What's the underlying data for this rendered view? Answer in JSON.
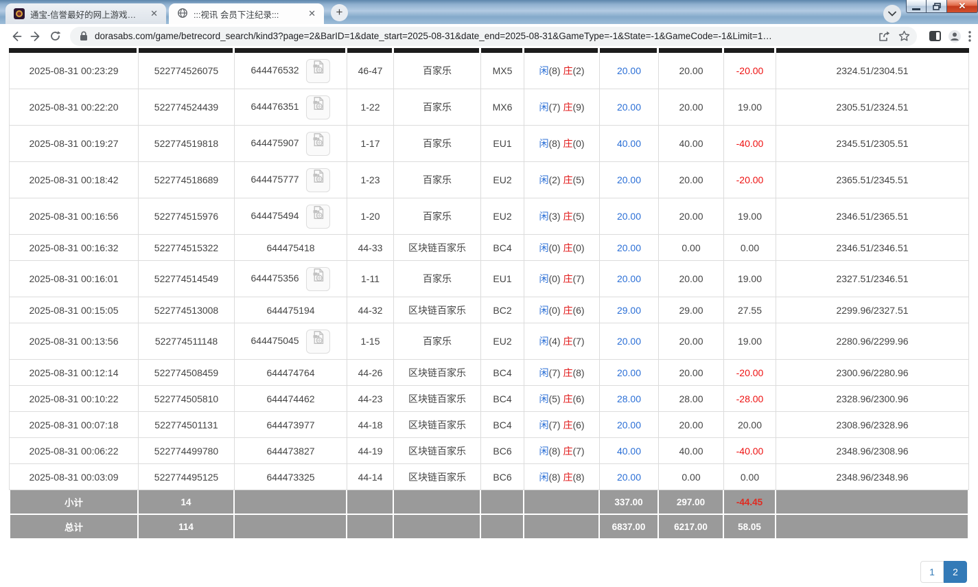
{
  "browser": {
    "tabs": [
      {
        "title": "通宝-信誉最好的网上游戏平台",
        "close": "✕"
      },
      {
        "title": ":::视讯 会员下注纪录:::",
        "close": "✕"
      }
    ],
    "new_tab_label": "+",
    "url": "dorasabs.com/game/betrecord_search/kind3?page=2&BarID=1&date_start=2025-08-31&date_end=2025-08-31&GameType=-1&State=-1&GameCode=-1&Limit=1…",
    "close_glyph": "✕"
  },
  "result_labels": {
    "player": "闲",
    "banker": "庄"
  },
  "colors": {
    "amount_blue": "#2b6fd6",
    "banker_red": "#e01414",
    "loss_red": "#ee1111",
    "footer_gray": "#9a9a9a",
    "pagination_blue": "#337ab7"
  },
  "table": {
    "rows": [
      {
        "time": "2025-08-31 00:23:29",
        "bet_id": "522774526075",
        "game_id": "644476532",
        "video": true,
        "round": "46-47",
        "game": "百家乐",
        "table": "MX5",
        "player_n": "(8)",
        "banker_n": "(2)",
        "bet": "20.00",
        "valid": "20.00",
        "winloss": "-20.00",
        "balance": "2324.51/2304.51"
      },
      {
        "time": "2025-08-31 00:22:20",
        "bet_id": "522774524439",
        "game_id": "644476351",
        "video": true,
        "round": "1-22",
        "game": "百家乐",
        "table": "MX6",
        "player_n": "(7)",
        "banker_n": "(9)",
        "bet": "20.00",
        "valid": "20.00",
        "winloss": "19.00",
        "balance": "2305.51/2324.51"
      },
      {
        "time": "2025-08-31 00:19:27",
        "bet_id": "522774519818",
        "game_id": "644475907",
        "video": true,
        "round": "1-17",
        "game": "百家乐",
        "table": "EU1",
        "player_n": "(8)",
        "banker_n": "(0)",
        "bet": "40.00",
        "valid": "40.00",
        "winloss": "-40.00",
        "balance": "2345.51/2305.51"
      },
      {
        "time": "2025-08-31 00:18:42",
        "bet_id": "522774518689",
        "game_id": "644475777",
        "video": true,
        "round": "1-23",
        "game": "百家乐",
        "table": "EU2",
        "player_n": "(2)",
        "banker_n": "(5)",
        "bet": "20.00",
        "valid": "20.00",
        "winloss": "-20.00",
        "balance": "2365.51/2345.51"
      },
      {
        "time": "2025-08-31 00:16:56",
        "bet_id": "522774515976",
        "game_id": "644475494",
        "video": true,
        "round": "1-20",
        "game": "百家乐",
        "table": "EU2",
        "player_n": "(3)",
        "banker_n": "(5)",
        "bet": "20.00",
        "valid": "20.00",
        "winloss": "19.00",
        "balance": "2346.51/2365.51"
      },
      {
        "time": "2025-08-31 00:16:32",
        "bet_id": "522774515322",
        "game_id": "644475418",
        "video": false,
        "round": "44-33",
        "game": "区块链百家乐",
        "table": "BC4",
        "player_n": "(0)",
        "banker_n": "(0)",
        "bet": "20.00",
        "valid": "0.00",
        "winloss": "0.00",
        "balance": "2346.51/2346.51"
      },
      {
        "time": "2025-08-31 00:16:01",
        "bet_id": "522774514549",
        "game_id": "644475356",
        "video": true,
        "round": "1-11",
        "game": "百家乐",
        "table": "EU1",
        "player_n": "(0)",
        "banker_n": "(7)",
        "bet": "20.00",
        "valid": "20.00",
        "winloss": "19.00",
        "balance": "2327.51/2346.51"
      },
      {
        "time": "2025-08-31 00:15:05",
        "bet_id": "522774513008",
        "game_id": "644475194",
        "video": false,
        "round": "44-32",
        "game": "区块链百家乐",
        "table": "BC2",
        "player_n": "(0)",
        "banker_n": "(6)",
        "bet": "29.00",
        "valid": "29.00",
        "winloss": "27.55",
        "balance": "2299.96/2327.51"
      },
      {
        "time": "2025-08-31 00:13:56",
        "bet_id": "522774511148",
        "game_id": "644475045",
        "video": true,
        "round": "1-15",
        "game": "百家乐",
        "table": "EU2",
        "player_n": "(4)",
        "banker_n": "(7)",
        "bet": "20.00",
        "valid": "20.00",
        "winloss": "19.00",
        "balance": "2280.96/2299.96"
      },
      {
        "time": "2025-08-31 00:12:14",
        "bet_id": "522774508459",
        "game_id": "644474764",
        "video": false,
        "round": "44-26",
        "game": "区块链百家乐",
        "table": "BC4",
        "player_n": "(7)",
        "banker_n": "(8)",
        "bet": "20.00",
        "valid": "20.00",
        "winloss": "-20.00",
        "balance": "2300.96/2280.96"
      },
      {
        "time": "2025-08-31 00:10:22",
        "bet_id": "522774505810",
        "game_id": "644474462",
        "video": false,
        "round": "44-23",
        "game": "区块链百家乐",
        "table": "BC4",
        "player_n": "(5)",
        "banker_n": "(6)",
        "bet": "28.00",
        "valid": "28.00",
        "winloss": "-28.00",
        "balance": "2328.96/2300.96"
      },
      {
        "time": "2025-08-31 00:07:18",
        "bet_id": "522774501131",
        "game_id": "644473977",
        "video": false,
        "round": "44-18",
        "game": "区块链百家乐",
        "table": "BC4",
        "player_n": "(7)",
        "banker_n": "(6)",
        "bet": "20.00",
        "valid": "20.00",
        "winloss": "20.00",
        "balance": "2308.96/2328.96"
      },
      {
        "time": "2025-08-31 00:06:22",
        "bet_id": "522774499780",
        "game_id": "644473827",
        "video": false,
        "round": "44-19",
        "game": "区块链百家乐",
        "table": "BC6",
        "player_n": "(8)",
        "banker_n": "(7)",
        "bet": "40.00",
        "valid": "40.00",
        "winloss": "-40.00",
        "balance": "2348.96/2308.96"
      },
      {
        "time": "2025-08-31 00:03:09",
        "bet_id": "522774495125",
        "game_id": "644473325",
        "video": false,
        "round": "44-14",
        "game": "区块链百家乐",
        "table": "BC6",
        "player_n": "(8)",
        "banker_n": "(8)",
        "bet": "20.00",
        "valid": "0.00",
        "winloss": "0.00",
        "balance": "2348.96/2348.96"
      }
    ],
    "footer": [
      {
        "label": "小计",
        "count": "14",
        "bet": "337.00",
        "valid": "297.00",
        "winloss": "-44.45"
      },
      {
        "label": "总计",
        "count": "114",
        "bet": "6837.00",
        "valid": "6217.00",
        "winloss": "58.05"
      }
    ]
  },
  "pagination": {
    "pages": [
      "1",
      "2"
    ],
    "active": "2"
  }
}
